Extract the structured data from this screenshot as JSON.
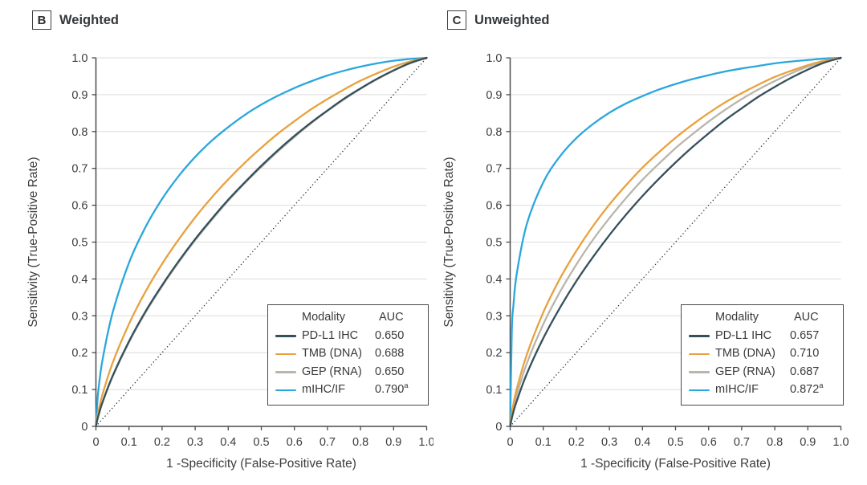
{
  "figure": {
    "background": "#ffffff"
  },
  "colors": {
    "pd_l1_ihc": "#35505B",
    "tmb_dna": "#E8A13E",
    "gep_rna": "#B8B6AB",
    "mihc_if": "#2AA7DC",
    "axis": "#4A4A4A",
    "gridline": "#DCDCDC",
    "text": "#3A3D3F",
    "reference_line": "#333333"
  },
  "chart_data": [
    {
      "type": "line",
      "subtype": "roc",
      "panel_label": "B",
      "title": "Weighted",
      "xlabel": "1 -Specificity (False-Positive Rate)",
      "ylabel": "Sensitivity (True-Positive Rate)",
      "xlim": [
        0,
        1
      ],
      "ylim": [
        0,
        1
      ],
      "xticks": [
        "0",
        "0.1",
        "0.2",
        "0.3",
        "0.4",
        "0.5",
        "0.6",
        "0.7",
        "0.8",
        "0.9",
        "1.0"
      ],
      "yticks": [
        "0",
        "0.1",
        "0.2",
        "0.3",
        "0.4",
        "0.5",
        "0.6",
        "0.7",
        "0.8",
        "0.9",
        "1.0"
      ],
      "grid": "horizontal",
      "diagonal_reference": "dotted",
      "legend": {
        "header_modality": "Modality",
        "header_auc": "AUC",
        "position": "lower-right"
      },
      "x": [
        0,
        0.005,
        0.01,
        0.02,
        0.05,
        0.1,
        0.15,
        0.2,
        0.25,
        0.3,
        0.35,
        0.4,
        0.45,
        0.5,
        0.55,
        0.6,
        0.65,
        0.7,
        0.75,
        0.8,
        0.85,
        0.9,
        0.95,
        1
      ],
      "series": [
        {
          "name": "PD-L1 IHC",
          "auc": "0.650",
          "auc_sup": "",
          "color": "#35505B",
          "values": [
            0,
            0.021,
            0.037,
            0.066,
            0.136,
            0.231,
            0.312,
            0.383,
            0.448,
            0.508,
            0.563,
            0.615,
            0.662,
            0.707,
            0.749,
            0.788,
            0.824,
            0.857,
            0.889,
            0.917,
            0.943,
            0.966,
            0.986,
            1
          ]
        },
        {
          "name": "TMB (DNA)",
          "auc": "0.688",
          "auc_sup": "",
          "color": "#E8A13E",
          "values": [
            0,
            0.03,
            0.051,
            0.087,
            0.171,
            0.278,
            0.366,
            0.441,
            0.507,
            0.567,
            0.621,
            0.67,
            0.715,
            0.756,
            0.794,
            0.828,
            0.86,
            0.888,
            0.914,
            0.938,
            0.958,
            0.976,
            0.99,
            1
          ]
        },
        {
          "name": "GEP (RNA)",
          "auc": "0.650",
          "auc_sup": "",
          "color": "#B8B6AB",
          "values": [
            0,
            0.021,
            0.037,
            0.065,
            0.134,
            0.228,
            0.309,
            0.38,
            0.445,
            0.505,
            0.56,
            0.612,
            0.66,
            0.704,
            0.746,
            0.785,
            0.822,
            0.856,
            0.887,
            0.916,
            0.942,
            0.965,
            0.985,
            1
          ]
        },
        {
          "name": "mIHC/IF",
          "auc": "0.790",
          "auc_sup": "a",
          "color": "#2AA7DC",
          "values": [
            0,
            0.076,
            0.118,
            0.181,
            0.307,
            0.444,
            0.541,
            0.617,
            0.679,
            0.731,
            0.775,
            0.812,
            0.845,
            0.873,
            0.897,
            0.918,
            0.936,
            0.952,
            0.965,
            0.976,
            0.985,
            0.992,
            0.997,
            1
          ]
        }
      ]
    },
    {
      "type": "line",
      "subtype": "roc",
      "panel_label": "C",
      "title": "Unweighted",
      "xlabel": "1 -Specificity (False-Positive Rate)",
      "ylabel": "Sensitivity (True-Positive Rate)",
      "xlim": [
        0,
        1
      ],
      "ylim": [
        0,
        1
      ],
      "xticks": [
        "0",
        "0.1",
        "0.2",
        "0.3",
        "0.4",
        "0.5",
        "0.6",
        "0.7",
        "0.8",
        "0.9",
        "1.0"
      ],
      "yticks": [
        "0",
        "0.1",
        "0.2",
        "0.3",
        "0.4",
        "0.5",
        "0.6",
        "0.7",
        "0.8",
        "0.9",
        "1.0"
      ],
      "grid": "horizontal",
      "diagonal_reference": "dotted",
      "legend": {
        "header_modality": "Modality",
        "header_auc": "AUC",
        "position": "lower-right"
      },
      "x": [
        0,
        0.005,
        0.01,
        0.02,
        0.05,
        0.1,
        0.15,
        0.2,
        0.25,
        0.3,
        0.35,
        0.4,
        0.45,
        0.5,
        0.55,
        0.6,
        0.65,
        0.7,
        0.75,
        0.8,
        0.85,
        0.9,
        0.95,
        1
      ],
      "series": [
        {
          "name": "PD-L1 IHC",
          "auc": "0.657",
          "auc_sup": "",
          "color": "#35505B",
          "values": [
            0,
            0.022,
            0.04,
            0.069,
            0.142,
            0.239,
            0.321,
            0.394,
            0.459,
            0.519,
            0.574,
            0.625,
            0.672,
            0.716,
            0.757,
            0.795,
            0.831,
            0.863,
            0.894,
            0.921,
            0.946,
            0.968,
            0.987,
            1
          ]
        },
        {
          "name": "TMB (DNA)",
          "auc": "0.710",
          "auc_sup": "",
          "color": "#E8A13E",
          "values": [
            0,
            0.036,
            0.061,
            0.102,
            0.194,
            0.309,
            0.4,
            0.476,
            0.543,
            0.602,
            0.654,
            0.702,
            0.744,
            0.783,
            0.818,
            0.85,
            0.879,
            0.904,
            0.927,
            0.948,
            0.965,
            0.98,
            0.992,
            1
          ]
        },
        {
          "name": "GEP (RNA)",
          "auc": "0.687",
          "auc_sup": "",
          "color": "#B8B6AB",
          "values": [
            0,
            0.03,
            0.051,
            0.086,
            0.17,
            0.277,
            0.364,
            0.439,
            0.506,
            0.565,
            0.619,
            0.669,
            0.713,
            0.755,
            0.792,
            0.827,
            0.859,
            0.888,
            0.914,
            0.937,
            0.958,
            0.976,
            0.99,
            1
          ]
        },
        {
          "name": "mIHC/IF",
          "auc": "0.872",
          "auc_sup": "a",
          "color": "#2AA7DC",
          "values": [
            0,
            0.26,
            0.33,
            0.415,
            0.548,
            0.662,
            0.732,
            0.782,
            0.82,
            0.851,
            0.876,
            0.896,
            0.914,
            0.929,
            0.942,
            0.953,
            0.963,
            0.971,
            0.978,
            0.985,
            0.99,
            0.994,
            0.998,
            1
          ]
        }
      ]
    }
  ]
}
